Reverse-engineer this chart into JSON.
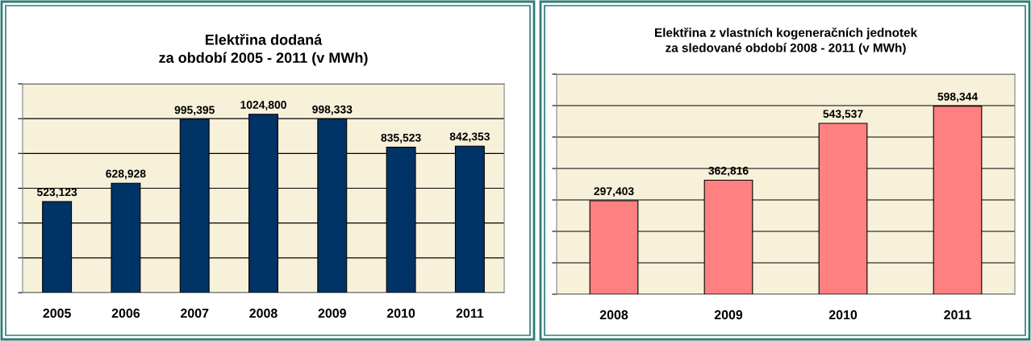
{
  "chart_data": [
    {
      "type": "bar",
      "title": "Elektřina dodaná\nza období 2005 - 2011 (v MWh)",
      "categories": [
        "2005",
        "2006",
        "2007",
        "2008",
        "2009",
        "2010",
        "2011"
      ],
      "values": [
        523123,
        628928,
        995395,
        1024800,
        998333,
        835523,
        842353
      ],
      "color": "#003366",
      "value_labels": [
        "523,123",
        "628,928",
        "995,395",
        "1024,800",
        "998,333",
        "835,523",
        "842,353"
      ],
      "ylim": [
        0,
        1200000
      ],
      "yticks": [
        {
          "value": 0,
          "label": null
        },
        {
          "value": 200000,
          "label": null
        },
        {
          "value": 400000,
          "label": null
        },
        {
          "value": 600000,
          "label": null
        },
        {
          "value": 800000,
          "label": null
        },
        {
          "value": 1000000,
          "label": null
        },
        {
          "value": 1200000,
          "label": null
        }
      ],
      "grid": "y"
    },
    {
      "type": "bar",
      "title": "Elektřina z vlastních kogeneračních jednotek\nza sledované období 2008 - 2011 (v MWh)",
      "categories": [
        "2008",
        "2009",
        "2010",
        "2011"
      ],
      "values": [
        297403,
        362816,
        543537,
        598344
      ],
      "color": "#ff8080",
      "value_labels": [
        "297,403",
        "362,816",
        "543,537",
        "598,344"
      ],
      "ylim": [
        0,
        700000
      ],
      "yticks": [
        {
          "value": 0,
          "label": null
        },
        {
          "value": 100000,
          "label": null
        },
        {
          "value": 200000,
          "label": null
        },
        {
          "value": 300000,
          "label": null
        },
        {
          "value": 400000,
          "label": null
        },
        {
          "value": 500000,
          "label": null
        },
        {
          "value": 600000,
          "label": null
        },
        {
          "value": 700000,
          "label": null
        }
      ],
      "grid": "y"
    }
  ]
}
